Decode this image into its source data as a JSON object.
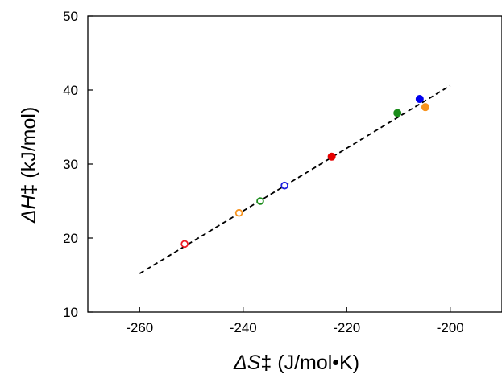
{
  "chart_data": {
    "type": "scatter",
    "title": "",
    "xlabel": {
      "symbol": "ΔS",
      "rest": "‡ (J/mol•K)"
    },
    "ylabel": {
      "symbol": "ΔH",
      "rest": "‡ (kJ/mol)"
    },
    "xlim": [
      -270,
      -190
    ],
    "ylim": [
      10,
      50
    ],
    "xticks": [
      -260,
      -240,
      -220,
      -200
    ],
    "yticks": [
      10,
      20,
      30,
      40,
      50
    ],
    "grid": false,
    "legend": "none",
    "fit_line": {
      "style": "dashed",
      "color": "#000000",
      "x": [
        -260,
        -200
      ],
      "y": [
        15.2,
        40.6
      ]
    },
    "points": [
      {
        "x": -251.3,
        "y": 19.2,
        "color": "#ee1c25",
        "filled": false
      },
      {
        "x": -240.8,
        "y": 23.4,
        "color": "#f7931e",
        "filled": false
      },
      {
        "x": -236.7,
        "y": 25.0,
        "color": "#1a8c1a",
        "filled": false
      },
      {
        "x": -232.0,
        "y": 27.1,
        "color": "#1f1fe0",
        "filled": false
      },
      {
        "x": -222.9,
        "y": 31.0,
        "color": "#e60000",
        "filled": true
      },
      {
        "x": -210.2,
        "y": 36.9,
        "color": "#1a8c1a",
        "filled": true
      },
      {
        "x": -205.9,
        "y": 38.8,
        "color": "#0000ee",
        "filled": true
      },
      {
        "x": -204.8,
        "y": 37.7,
        "color": "#f7931e",
        "filled": true
      }
    ]
  }
}
